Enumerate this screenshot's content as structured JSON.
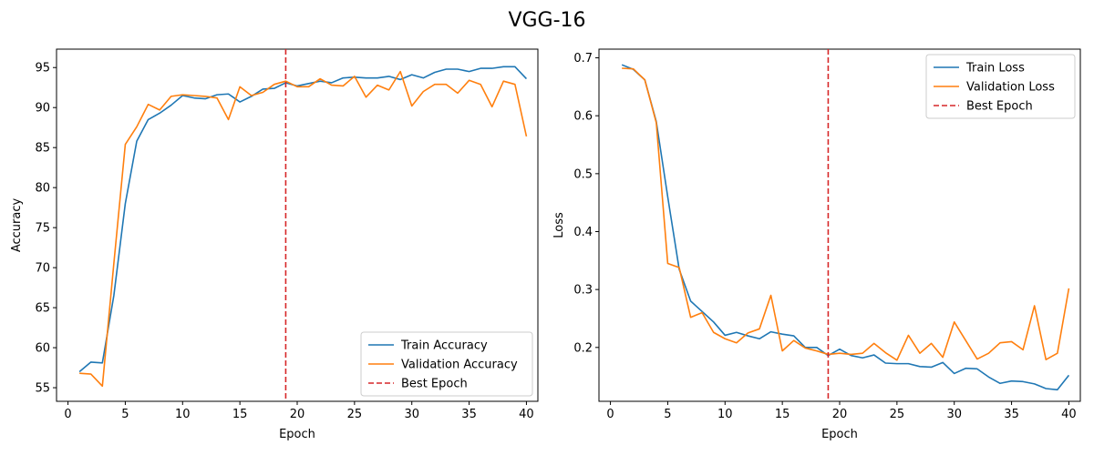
{
  "suptitle": "VGG-16",
  "colors": {
    "train": "#1f77b4",
    "validation": "#ff7f0e",
    "best_epoch": "#d62728"
  },
  "chart_data": [
    {
      "type": "line",
      "xlabel": "Epoch",
      "ylabel": "Accuracy",
      "xlim": [
        -1,
        41
      ],
      "ylim": [
        53.3,
        97.3
      ],
      "xticks": [
        0,
        5,
        10,
        15,
        20,
        25,
        30,
        35,
        40
      ],
      "yticks": [
        55,
        60,
        65,
        70,
        75,
        80,
        85,
        90,
        95
      ],
      "grid": false,
      "legend_position": "lower-right",
      "best_epoch": 19,
      "best_epoch_label": "Best Epoch",
      "x": [
        1,
        2,
        3,
        4,
        5,
        6,
        7,
        8,
        9,
        10,
        11,
        12,
        13,
        14,
        15,
        16,
        17,
        18,
        19,
        20,
        21,
        22,
        23,
        24,
        25,
        26,
        27,
        28,
        29,
        30,
        31,
        32,
        33,
        34,
        35,
        36,
        37,
        38,
        39,
        40
      ],
      "series": [
        {
          "name": "Train Accuracy",
          "color": "#1f77b4",
          "values": [
            57.0,
            58.2,
            58.1,
            66.5,
            78.0,
            85.8,
            88.5,
            89.3,
            90.3,
            91.5,
            91.2,
            91.1,
            91.6,
            91.7,
            90.7,
            91.4,
            92.3,
            92.4,
            93.1,
            92.7,
            93.0,
            93.3,
            93.1,
            93.7,
            93.8,
            93.7,
            93.7,
            93.9,
            93.5,
            94.1,
            93.7,
            94.4,
            94.8,
            94.8,
            94.5,
            94.9,
            94.9,
            95.1,
            95.1,
            93.6
          ]
        },
        {
          "name": "Validation Accuracy",
          "color": "#ff7f0e",
          "values": [
            56.8,
            56.7,
            55.2,
            70.5,
            85.4,
            87.6,
            90.4,
            89.7,
            91.4,
            91.6,
            91.5,
            91.4,
            91.2,
            88.5,
            92.6,
            91.5,
            91.9,
            92.9,
            93.3,
            92.6,
            92.6,
            93.6,
            92.8,
            92.7,
            93.9,
            91.3,
            92.8,
            92.2,
            94.5,
            90.2,
            92.0,
            92.9,
            92.9,
            91.8,
            93.4,
            92.9,
            90.1,
            93.3,
            92.9,
            86.4
          ]
        }
      ]
    },
    {
      "type": "line",
      "xlabel": "Epoch",
      "ylabel": "Loss",
      "xlim": [
        -1,
        41
      ],
      "ylim": [
        0.107,
        0.715
      ],
      "xticks": [
        0,
        5,
        10,
        15,
        20,
        25,
        30,
        35,
        40
      ],
      "yticks": [
        0.2,
        0.3,
        0.4,
        0.5,
        0.6,
        0.7
      ],
      "grid": false,
      "legend_position": "upper-right",
      "best_epoch": 19,
      "best_epoch_label": "Best Epoch",
      "x": [
        1,
        2,
        3,
        4,
        5,
        6,
        7,
        8,
        9,
        10,
        11,
        12,
        13,
        14,
        15,
        16,
        17,
        18,
        19,
        20,
        21,
        22,
        23,
        24,
        25,
        26,
        27,
        28,
        29,
        30,
        31,
        32,
        33,
        34,
        35,
        36,
        37,
        38,
        39,
        40
      ],
      "series": [
        {
          "name": "Train Loss",
          "color": "#1f77b4",
          "values": [
            0.688,
            0.68,
            0.662,
            0.59,
            0.46,
            0.335,
            0.28,
            0.262,
            0.244,
            0.221,
            0.226,
            0.22,
            0.215,
            0.227,
            0.223,
            0.22,
            0.2,
            0.2,
            0.186,
            0.197,
            0.186,
            0.182,
            0.187,
            0.173,
            0.172,
            0.172,
            0.167,
            0.166,
            0.174,
            0.155,
            0.164,
            0.163,
            0.149,
            0.138,
            0.142,
            0.141,
            0.137,
            0.129,
            0.127,
            0.152
          ]
        },
        {
          "name": "Validation Loss",
          "color": "#ff7f0e",
          "values": [
            0.682,
            0.681,
            0.662,
            0.588,
            0.345,
            0.338,
            0.252,
            0.26,
            0.226,
            0.215,
            0.208,
            0.225,
            0.232,
            0.29,
            0.194,
            0.212,
            0.199,
            0.194,
            0.188,
            0.19,
            0.188,
            0.19,
            0.207,
            0.191,
            0.178,
            0.221,
            0.19,
            0.207,
            0.183,
            0.244,
            0.212,
            0.18,
            0.19,
            0.208,
            0.21,
            0.196,
            0.272,
            0.179,
            0.19,
            0.302
          ]
        }
      ]
    }
  ]
}
